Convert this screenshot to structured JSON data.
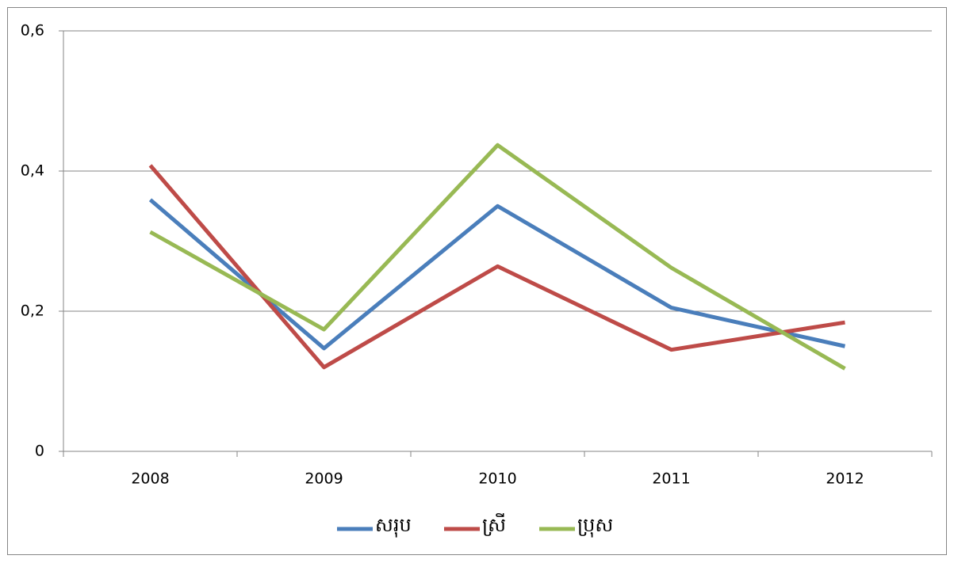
{
  "chart_data": {
    "type": "line",
    "categories": [
      "2008",
      "2009",
      "2010",
      "2011",
      "2012"
    ],
    "series": [
      {
        "name": "សរុប",
        "color": "#4a7ebb",
        "values": [
          0.359,
          0.147,
          0.35,
          0.205,
          0.15
        ]
      },
      {
        "name": "ស្រី",
        "color": "#be4b48",
        "values": [
          0.408,
          0.12,
          0.264,
          0.145,
          0.184
        ]
      },
      {
        "name": "ប្រុស",
        "color": "#98b954",
        "values": [
          0.313,
          0.174,
          0.437,
          0.262,
          0.118
        ]
      }
    ],
    "ylim": [
      0,
      0.6
    ],
    "yticks": [
      0,
      {
        "value": 0.2,
        "label": "0,2"
      },
      {
        "value": 0.4,
        "label": "0,4"
      },
      {
        "value": 0.6,
        "label": "0,6"
      }
    ],
    "grid": true,
    "legend": "bottom"
  }
}
